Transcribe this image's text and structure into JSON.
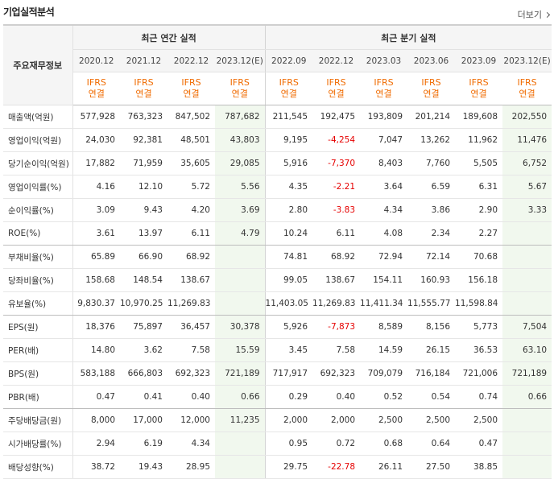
{
  "section_title": "기업실적분석",
  "more_label": "더보기",
  "header": {
    "label_col": "주요재무정보",
    "annual_group": "최근 연간 실적",
    "quarter_group": "최근 분기 실적",
    "periods": [
      "2020.12",
      "2021.12",
      "2022.12",
      "2023.12(E)",
      "2022.09",
      "2022.12",
      "2023.03",
      "2023.06",
      "2023.09",
      "2023.12(E)"
    ],
    "ifrs_top": "IFRS",
    "ifrs_bottom": "연결"
  },
  "rows": [
    {
      "label": "매출액(억원)",
      "values": [
        "577,928",
        "763,323",
        "847,502",
        "787,682",
        "211,545",
        "192,475",
        "193,809",
        "201,214",
        "189,608",
        "202,550"
      ]
    },
    {
      "label": "영업이익(억원)",
      "values": [
        "24,030",
        "92,381",
        "48,501",
        "43,803",
        "9,195",
        "-4,254",
        "7,047",
        "13,262",
        "11,962",
        "11,476"
      ]
    },
    {
      "label": "당기순이익(억원)",
      "values": [
        "17,882",
        "71,959",
        "35,605",
        "29,085",
        "5,916",
        "-7,370",
        "8,403",
        "7,760",
        "5,505",
        "6,752"
      ]
    },
    {
      "label": "영업이익률(%)",
      "values": [
        "4.16",
        "12.10",
        "5.72",
        "5.56",
        "4.35",
        "-2.21",
        "3.64",
        "6.59",
        "6.31",
        "5.67"
      ]
    },
    {
      "label": "순이익률(%)",
      "values": [
        "3.09",
        "9.43",
        "4.20",
        "3.69",
        "2.80",
        "-3.83",
        "4.34",
        "3.86",
        "2.90",
        "3.33"
      ]
    },
    {
      "label": "ROE(%)",
      "values": [
        "3.61",
        "13.97",
        "6.11",
        "4.79",
        "10.24",
        "6.11",
        "4.08",
        "2.34",
        "2.27",
        ""
      ]
    },
    {
      "label": "부채비율(%)",
      "values": [
        "65.89",
        "66.90",
        "68.92",
        "",
        "74.81",
        "68.92",
        "72.94",
        "72.14",
        "70.68",
        ""
      ]
    },
    {
      "label": "당좌비율(%)",
      "values": [
        "158.68",
        "148.54",
        "138.67",
        "",
        "99.05",
        "138.67",
        "154.11",
        "160.93",
        "156.18",
        ""
      ]
    },
    {
      "label": "유보율(%)",
      "values": [
        "9,830.37",
        "10,970.25",
        "11,269.83",
        "",
        "11,403.05",
        "11,269.83",
        "11,411.34",
        "11,555.77",
        "11,598.84",
        ""
      ]
    },
    {
      "label": "EPS(원)",
      "values": [
        "18,376",
        "75,897",
        "36,457",
        "30,378",
        "5,926",
        "-7,873",
        "8,589",
        "8,156",
        "5,773",
        "7,504"
      ]
    },
    {
      "label": "PER(배)",
      "values": [
        "14.80",
        "3.62",
        "7.58",
        "15.59",
        "3.45",
        "7.58",
        "14.59",
        "26.15",
        "36.53",
        "63.10"
      ]
    },
    {
      "label": "BPS(원)",
      "values": [
        "583,188",
        "666,803",
        "692,323",
        "721,189",
        "717,917",
        "692,323",
        "709,079",
        "716,184",
        "721,006",
        "721,189"
      ]
    },
    {
      "label": "PBR(배)",
      "values": [
        "0.47",
        "0.41",
        "0.40",
        "0.66",
        "0.29",
        "0.40",
        "0.52",
        "0.54",
        "0.74",
        "0.66"
      ]
    },
    {
      "label": "주당배당금(원)",
      "values": [
        "8,000",
        "17,000",
        "12,000",
        "11,235",
        "2,000",
        "2,000",
        "2,500",
        "2,500",
        "2,500",
        ""
      ]
    },
    {
      "label": "시가배당률(%)",
      "values": [
        "2.94",
        "6.19",
        "4.34",
        "",
        "0.95",
        "0.72",
        "0.68",
        "0.64",
        "0.47",
        ""
      ]
    },
    {
      "label": "배당성향(%)",
      "values": [
        "38.72",
        "19.43",
        "28.95",
        "",
        "29.75",
        "-22.78",
        "26.11",
        "27.50",
        "38.85",
        ""
      ]
    }
  ]
}
